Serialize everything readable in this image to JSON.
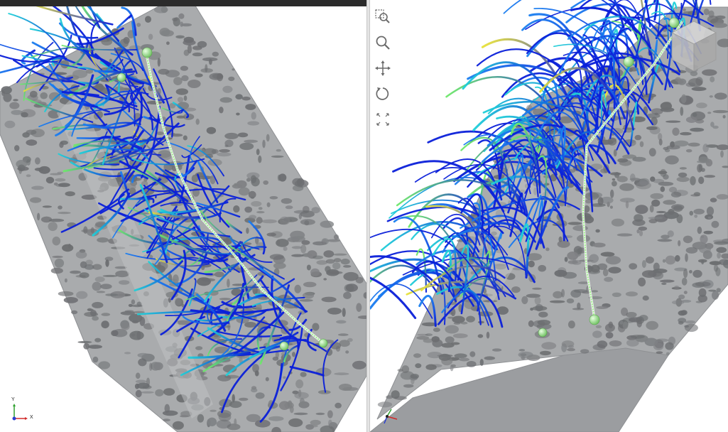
{
  "window": {
    "title": ""
  },
  "toolbar": {
    "items": [
      {
        "name": "zoom-window",
        "icon": "zoom-window-icon"
      },
      {
        "name": "zoom",
        "icon": "magnifier-icon"
      },
      {
        "name": "pan",
        "icon": "pan-arrows-icon"
      },
      {
        "name": "rotate",
        "icon": "rotate-icon"
      },
      {
        "name": "fit-all",
        "icon": "fit-all-icon"
      }
    ]
  },
  "viewports": {
    "left": {
      "view": "top",
      "triad": {
        "x_label": "X",
        "y_label": "Y"
      }
    },
    "right": {
      "view": "isometric",
      "triad": {
        "x_label": "",
        "y_label": ""
      }
    }
  },
  "colors": {
    "terrain_light": "#a9abad",
    "terrain_dark": "#6c6e71",
    "terrain_edge": "#8e9093",
    "trajectory_dark": "#0a1fd9",
    "trajectory_mid": "#1a7ff0",
    "trajectory_cyan": "#1fd0d8",
    "trajectory_green": "#6ee86a",
    "trajectory_yellow": "#e8e23a",
    "barrier_line": "#9ff58a",
    "sensor_sphere": "#a6e39a",
    "axis_x": "#d12a2a",
    "axis_y": "#2fa02f",
    "axis_z": "#2a3fd1"
  }
}
